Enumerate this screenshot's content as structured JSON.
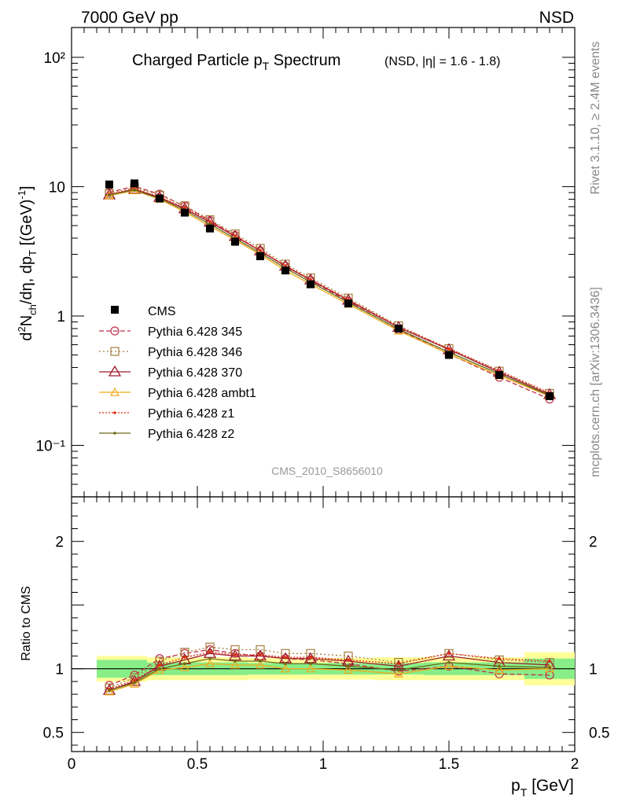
{
  "header": {
    "left": "7000 GeV pp",
    "right": "NSD"
  },
  "side": {
    "rivet": "Rivet 3.1.10, ≥ 2.4M events",
    "source": "mcplots.cern.ch [arXiv:1306.3436]"
  },
  "chart_data": {
    "type": "line",
    "title": "Charged Particle p_T Spectrum",
    "subtitle": "(NSD, |η| = 1.6 - 1.8)",
    "analysis_id": "CMS_2010_S8656010",
    "xlabel": "p_T [GeV]",
    "ylabel": "d²N_ch/dη, dp_T [(GeV)⁻¹]",
    "ratio_ylabel": "Ratio to CMS",
    "xlim": [
      0,
      2
    ],
    "ylim": [
      0.04,
      170
    ],
    "yscale": "log",
    "ratio_ylim": [
      0.35,
      2.35
    ],
    "x_ticks": [
      "0",
      "0.5",
      "1",
      "1.5",
      "2"
    ],
    "y_ticks": [
      "10⁻¹",
      "1",
      "10",
      "10²"
    ],
    "ratio_ticks": [
      "0.5",
      "1",
      "2"
    ],
    "x": [
      0.15,
      0.25,
      0.35,
      0.45,
      0.55,
      0.65,
      0.75,
      0.85,
      0.95,
      1.1,
      1.3,
      1.5,
      1.7,
      1.9
    ],
    "data": {
      "name": "CMS",
      "values": [
        10.4,
        10.6,
        8.1,
        6.3,
        4.75,
        3.75,
        2.9,
        2.25,
        1.76,
        1.25,
        0.8,
        0.5,
        0.35,
        0.24
      ],
      "band_inner": [
        0.07,
        0.07,
        0.05,
        0.05,
        0.05,
        0.05,
        0.045,
        0.045,
        0.045,
        0.045,
        0.045,
        0.05,
        0.05,
        0.08
      ],
      "band_outer": [
        0.1,
        0.1,
        0.09,
        0.09,
        0.09,
        0.09,
        0.085,
        0.085,
        0.085,
        0.085,
        0.09,
        0.09,
        0.09,
        0.13
      ],
      "bins": [
        [
          0.1,
          0.2
        ],
        [
          0.2,
          0.3
        ],
        [
          0.3,
          0.4
        ],
        [
          0.4,
          0.5
        ],
        [
          0.5,
          0.6
        ],
        [
          0.6,
          0.7
        ],
        [
          0.7,
          0.8
        ],
        [
          0.8,
          0.9
        ],
        [
          0.9,
          1.0
        ],
        [
          1.0,
          1.2
        ],
        [
          1.2,
          1.4
        ],
        [
          1.4,
          1.6
        ],
        [
          1.6,
          1.8
        ],
        [
          1.8,
          2.0
        ]
      ]
    },
    "series": [
      {
        "name": "Pythia 6.428 345",
        "color": "#c0304a",
        "dash": "6,3",
        "marker": "circle-open",
        "ratio": [
          0.87,
          0.95,
          1.08,
          1.12,
          1.15,
          1.12,
          1.1,
          1.08,
          1.07,
          1.04,
          0.98,
          1.02,
          0.96,
          0.95
        ]
      },
      {
        "name": "Pythia 6.428 346",
        "color": "#a57d3c",
        "dash": "2,3",
        "marker": "square-open",
        "ratio": [
          0.85,
          0.93,
          1.06,
          1.13,
          1.17,
          1.15,
          1.15,
          1.12,
          1.12,
          1.1,
          1.05,
          1.12,
          1.07,
          1.05
        ]
      },
      {
        "name": "Pythia 6.428 370",
        "color": "#9b1b2c",
        "dash": "",
        "marker": "triangle-open",
        "ratio": [
          0.83,
          0.9,
          1.02,
          1.07,
          1.12,
          1.1,
          1.1,
          1.08,
          1.08,
          1.06,
          1.02,
          1.1,
          1.05,
          1.03
        ]
      },
      {
        "name": "Pythia 6.428 ambt1",
        "color": "#f0ab1c",
        "dash": "",
        "marker": "triangle-open-small",
        "ratio": [
          0.82,
          0.88,
          0.99,
          1.01,
          1.04,
          1.03,
          1.03,
          1.0,
          1.0,
          0.99,
          0.96,
          1.02,
          0.99,
          1.0
        ]
      },
      {
        "name": "Pythia 6.428 z1",
        "color": "#e32b12",
        "dash": "2,2",
        "marker": "dot",
        "ratio": [
          0.84,
          0.91,
          1.03,
          1.09,
          1.13,
          1.11,
          1.11,
          1.09,
          1.09,
          1.07,
          1.04,
          1.12,
          1.08,
          1.06
        ]
      },
      {
        "name": "Pythia 6.428 z2",
        "color": "#6b6b1a",
        "dash": "",
        "marker": "dot",
        "ratio": [
          0.83,
          0.89,
          1.0,
          1.04,
          1.08,
          1.06,
          1.06,
          1.04,
          1.04,
          1.02,
          0.99,
          1.05,
          1.02,
          1.01
        ]
      }
    ]
  }
}
